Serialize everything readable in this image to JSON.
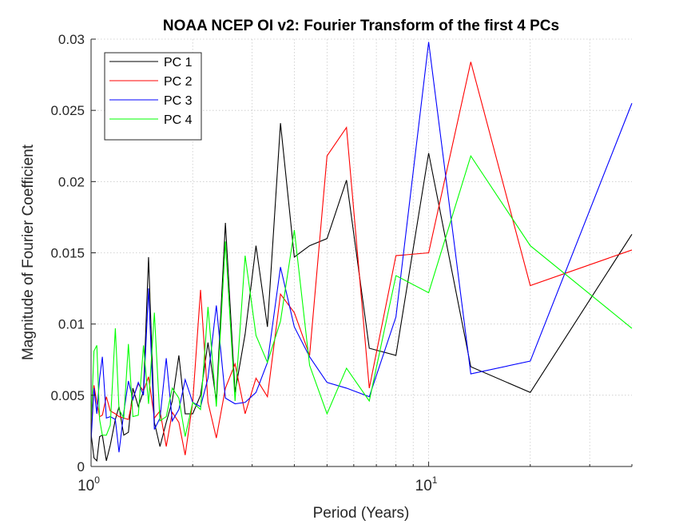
{
  "chart_data": {
    "type": "line",
    "title": "NOAA NCEP OI v2: Fourier Transform of the first 4 PCs",
    "xlabel": "Period (Years)",
    "ylabel": "Magnitude of Fourier Coefficient",
    "xscale": "log",
    "xlim": [
      1,
      40
    ],
    "ylim": [
      0,
      0.03
    ],
    "grid": true,
    "legend_location": "top-left",
    "xticks": [
      {
        "value": 1,
        "base": "10",
        "exp": "0"
      },
      {
        "value": 10,
        "base": "10",
        "exp": "1"
      }
    ],
    "yticks": [
      {
        "value": 0,
        "label": "0"
      },
      {
        "value": 0.005,
        "label": "0.005"
      },
      {
        "value": 0.01,
        "label": "0.01"
      },
      {
        "value": 0.015,
        "label": "0.015"
      },
      {
        "value": 0.02,
        "label": "0.02"
      },
      {
        "value": 0.025,
        "label": "0.025"
      },
      {
        "value": 0.03,
        "label": "0.03"
      }
    ],
    "series": [
      {
        "name": "PC 1",
        "color": "#000000",
        "points": [
          [
            1,
            0.0023
          ],
          [
            1.02,
            0.0006
          ],
          [
            1.04,
            0.0004
          ],
          [
            1.06,
            0.0021
          ],
          [
            1.08,
            0.0022
          ],
          [
            1.11,
            0.0004
          ],
          [
            1.14,
            0.0015
          ],
          [
            1.18,
            0.0033
          ],
          [
            1.21,
            0.0042
          ],
          [
            1.25,
            0.0022
          ],
          [
            1.29,
            0.0024
          ],
          [
            1.33,
            0.0055
          ],
          [
            1.38,
            0.0042
          ],
          [
            1.43,
            0.0053
          ],
          [
            1.48,
            0.0147
          ],
          [
            1.54,
            0.0031
          ],
          [
            1.6,
            0.0014
          ],
          [
            1.67,
            0.0031
          ],
          [
            1.74,
            0.0046
          ],
          [
            1.82,
            0.0078
          ],
          [
            1.9,
            0.0037
          ],
          [
            2,
            0.0037
          ],
          [
            2.11,
            0.005
          ],
          [
            2.22,
            0.0087
          ],
          [
            2.35,
            0.0046
          ],
          [
            2.5,
            0.0171
          ],
          [
            2.67,
            0.0052
          ],
          [
            2.86,
            0.0093
          ],
          [
            3.08,
            0.0155
          ],
          [
            3.33,
            0.0098
          ],
          [
            3.64,
            0.0241
          ],
          [
            4,
            0.0147
          ],
          [
            4.44,
            0.0155
          ],
          [
            5,
            0.016
          ],
          [
            5.71,
            0.0201
          ],
          [
            6.67,
            0.0083
          ],
          [
            8,
            0.0078
          ],
          [
            10,
            0.022
          ],
          [
            13.33,
            0.007
          ],
          [
            20,
            0.0052
          ],
          [
            40,
            0.0163
          ]
        ]
      },
      {
        "name": "PC 2",
        "color": "#ff0000",
        "points": [
          [
            1,
            0.0023
          ],
          [
            1.02,
            0.0057
          ],
          [
            1.04,
            0.0045
          ],
          [
            1.06,
            0.0035
          ],
          [
            1.08,
            0.0036
          ],
          [
            1.11,
            0.0049
          ],
          [
            1.14,
            0.0039
          ],
          [
            1.18,
            0.0037
          ],
          [
            1.21,
            0.0035
          ],
          [
            1.25,
            0.0034
          ],
          [
            1.29,
            0.0033
          ],
          [
            1.33,
            0.0048
          ],
          [
            1.38,
            0.0058
          ],
          [
            1.43,
            0.0053
          ],
          [
            1.48,
            0.0063
          ],
          [
            1.54,
            0.0034
          ],
          [
            1.6,
            0.0039
          ],
          [
            1.67,
            0.0014
          ],
          [
            1.74,
            0.0038
          ],
          [
            1.82,
            0.0031
          ],
          [
            1.9,
            0.0008
          ],
          [
            2,
            0.0045
          ],
          [
            2.11,
            0.0124
          ],
          [
            2.22,
            0.0045
          ],
          [
            2.35,
            0.002
          ],
          [
            2.5,
            0.0055
          ],
          [
            2.67,
            0.0072
          ],
          [
            2.86,
            0.0037
          ],
          [
            3.08,
            0.0062
          ],
          [
            3.33,
            0.0049
          ],
          [
            3.64,
            0.0121
          ],
          [
            4,
            0.0108
          ],
          [
            4.44,
            0.0078
          ],
          [
            5,
            0.0218
          ],
          [
            5.71,
            0.0238
          ],
          [
            6.67,
            0.0055
          ],
          [
            8,
            0.0148
          ],
          [
            10,
            0.015
          ],
          [
            13.33,
            0.0284
          ],
          [
            20,
            0.0127
          ],
          [
            40,
            0.0152
          ]
        ]
      },
      {
        "name": "PC 3",
        "color": "#0000ff",
        "points": [
          [
            1,
            0.0018
          ],
          [
            1.02,
            0.0055
          ],
          [
            1.04,
            0.0037
          ],
          [
            1.06,
            0.0062
          ],
          [
            1.08,
            0.0077
          ],
          [
            1.11,
            0.0034
          ],
          [
            1.14,
            0.0035
          ],
          [
            1.18,
            0.0033
          ],
          [
            1.21,
            0.001
          ],
          [
            1.25,
            0.0038
          ],
          [
            1.29,
            0.006
          ],
          [
            1.33,
            0.0047
          ],
          [
            1.38,
            0.0059
          ],
          [
            1.43,
            0.005
          ],
          [
            1.48,
            0.0125
          ],
          [
            1.54,
            0.0026
          ],
          [
            1.6,
            0.0034
          ],
          [
            1.67,
            0.0076
          ],
          [
            1.74,
            0.0032
          ],
          [
            1.82,
            0.004
          ],
          [
            1.9,
            0.0061
          ],
          [
            2,
            0.0045
          ],
          [
            2.11,
            0.0042
          ],
          [
            2.22,
            0.0062
          ],
          [
            2.35,
            0.0113
          ],
          [
            2.5,
            0.0048
          ],
          [
            2.67,
            0.0044
          ],
          [
            2.86,
            0.0045
          ],
          [
            3.08,
            0.0052
          ],
          [
            3.33,
            0.0073
          ],
          [
            3.64,
            0.014
          ],
          [
            4,
            0.0098
          ],
          [
            4.44,
            0.0077
          ],
          [
            5,
            0.0059
          ],
          [
            5.71,
            0.0055
          ],
          [
            6.67,
            0.0049
          ],
          [
            8,
            0.0105
          ],
          [
            10,
            0.0298
          ],
          [
            13.33,
            0.0065
          ],
          [
            20,
            0.0074
          ],
          [
            40,
            0.0255
          ]
        ]
      },
      {
        "name": "PC 4",
        "color": "#00ff00",
        "points": [
          [
            1,
            0.003
          ],
          [
            1.02,
            0.0081
          ],
          [
            1.04,
            0.0085
          ],
          [
            1.06,
            0.0033
          ],
          [
            1.08,
            0.0022
          ],
          [
            1.11,
            0.0022
          ],
          [
            1.14,
            0.0029
          ],
          [
            1.18,
            0.0097
          ],
          [
            1.21,
            0.004
          ],
          [
            1.25,
            0.0034
          ],
          [
            1.29,
            0.0086
          ],
          [
            1.33,
            0.0035
          ],
          [
            1.38,
            0.0036
          ],
          [
            1.43,
            0.0085
          ],
          [
            1.48,
            0.0044
          ],
          [
            1.54,
            0.0108
          ],
          [
            1.6,
            0.0032
          ],
          [
            1.67,
            0.0035
          ],
          [
            1.74,
            0.0055
          ],
          [
            1.82,
            0.0048
          ],
          [
            1.9,
            0.0021
          ],
          [
            2,
            0.0045
          ],
          [
            2.11,
            0.004
          ],
          [
            2.22,
            0.0112
          ],
          [
            2.35,
            0.0042
          ],
          [
            2.5,
            0.0158
          ],
          [
            2.67,
            0.0046
          ],
          [
            2.86,
            0.0148
          ],
          [
            3.08,
            0.0092
          ],
          [
            3.33,
            0.0073
          ],
          [
            3.64,
            0.0102
          ],
          [
            4,
            0.0166
          ],
          [
            4.44,
            0.0071
          ],
          [
            5,
            0.0037
          ],
          [
            5.71,
            0.0069
          ],
          [
            6.67,
            0.0046
          ],
          [
            8,
            0.0134
          ],
          [
            10,
            0.0122
          ],
          [
            13.33,
            0.0218
          ],
          [
            20,
            0.0155
          ],
          [
            40,
            0.0097
          ]
        ]
      }
    ]
  }
}
